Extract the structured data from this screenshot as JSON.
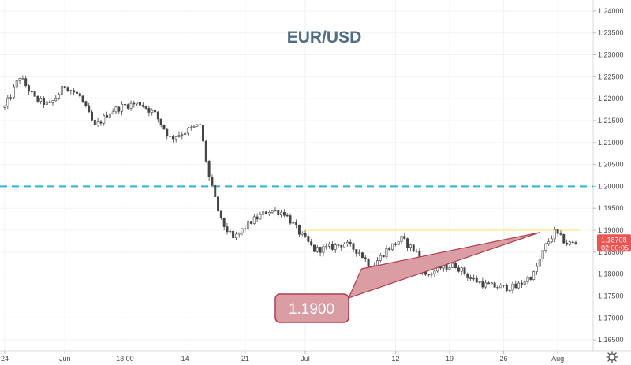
{
  "chart_data": {
    "type": "candlestick",
    "title": "EUR/USD",
    "ylim": [
      1.1625,
      1.2425
    ],
    "y_ticks": [
      "1.16500",
      "1.17000",
      "1.17500",
      "1.18000",
      "1.18500",
      "1.19000",
      "1.19500",
      "1.20000",
      "1.20500",
      "1.21000",
      "1.21500",
      "1.22000",
      "1.22500",
      "1.23000",
      "1.23500",
      "1.24000"
    ],
    "x_ticks": [
      "24",
      "Jun",
      "13:00",
      "14",
      "21",
      "Jul",
      "12",
      "19",
      "26",
      "Aug"
    ],
    "x_tick_index": [
      0,
      20,
      40,
      60,
      80,
      100,
      130,
      148,
      166,
      184
    ],
    "last_price": "1.18708",
    "countdown": "02:00:05",
    "levels": [
      {
        "value": 1.2,
        "style": "dashed",
        "color": "#29b6d6"
      },
      {
        "value": 1.19,
        "style": "solid",
        "color": "#ffe680"
      }
    ],
    "callout": {
      "label": "1.1900",
      "target_index": 178,
      "target_value": 1.1895,
      "base_index": 120
    },
    "colors": {
      "up": "#26a69a",
      "down": "#ef5350",
      "candle": "#444444",
      "callout": "#d99da3",
      "callout_border": "#b43c48",
      "badge": "#ef5350"
    },
    "path_keypoints": [
      [
        0,
        1.218
      ],
      [
        5,
        1.225
      ],
      [
        10,
        1.22
      ],
      [
        15,
        1.2185
      ],
      [
        20,
        1.223
      ],
      [
        25,
        1.2205
      ],
      [
        30,
        1.2135
      ],
      [
        35,
        1.217
      ],
      [
        40,
        1.2185
      ],
      [
        45,
        1.219
      ],
      [
        50,
        1.2165
      ],
      [
        55,
        1.211
      ],
      [
        60,
        1.2125
      ],
      [
        65,
        1.214
      ],
      [
        68,
        1.202
      ],
      [
        72,
        1.192
      ],
      [
        76,
        1.188
      ],
      [
        82,
        1.192
      ],
      [
        88,
        1.1945
      ],
      [
        93,
        1.194
      ],
      [
        98,
        1.1895
      ],
      [
        103,
        1.1855
      ],
      [
        108,
        1.186
      ],
      [
        113,
        1.187
      ],
      [
        118,
        1.185
      ],
      [
        122,
        1.1815
      ],
      [
        127,
        1.1855
      ],
      [
        132,
        1.188
      ],
      [
        137,
        1.185
      ],
      [
        140,
        1.1795
      ],
      [
        145,
        1.1815
      ],
      [
        150,
        1.182
      ],
      [
        155,
        1.179
      ],
      [
        160,
        1.1775
      ],
      [
        165,
        1.177
      ],
      [
        170,
        1.177
      ],
      [
        176,
        1.18
      ],
      [
        180,
        1.1865
      ],
      [
        183,
        1.1895
      ],
      [
        187,
        1.187
      ],
      [
        190,
        1.187
      ]
    ]
  }
}
